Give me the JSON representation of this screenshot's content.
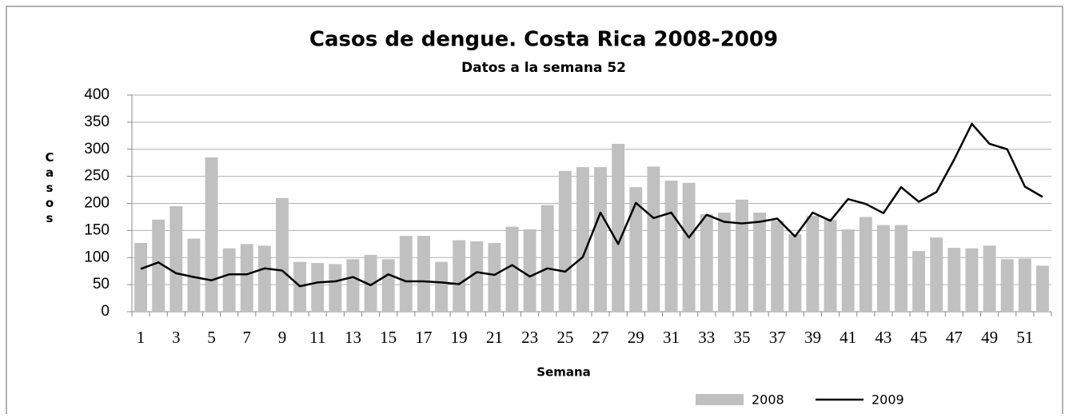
{
  "chart_data": {
    "type": "bar",
    "title": "Casos de dengue. Costa Rica 2008-2009",
    "subtitle": "Datos a la semana 52",
    "x_label": "Semana",
    "y_label": "Casos",
    "categories": [
      "1",
      null,
      "3",
      null,
      "5",
      null,
      "7",
      null,
      "9",
      null,
      "11",
      null,
      "13",
      null,
      "15",
      null,
      "17",
      null,
      "19",
      null,
      "21",
      null,
      "23",
      null,
      "25",
      null,
      "27",
      null,
      "29",
      null,
      "31",
      null,
      "33",
      null,
      "35",
      null,
      "37",
      null,
      "39",
      null,
      "41",
      null,
      "43",
      null,
      "45",
      null,
      "47",
      null,
      "49",
      null,
      "51",
      null
    ],
    "series": [
      {
        "name": "2008",
        "type": "bar",
        "color": "#c0c0c0",
        "values": [
          127,
          170,
          195,
          135,
          285,
          117,
          125,
          122,
          210,
          92,
          90,
          88,
          97,
          105,
          97,
          140,
          140,
          92,
          132,
          130,
          127,
          157,
          152,
          197,
          260,
          267,
          267,
          310,
          230,
          268,
          242,
          238,
          180,
          183,
          207,
          183,
          168,
          143,
          177,
          170,
          152,
          175,
          160,
          160,
          112,
          137,
          118,
          117,
          122,
          97,
          98,
          85
        ]
      },
      {
        "name": "2009",
        "type": "line",
        "color": "#000000",
        "values": [
          79,
          91,
          71,
          64,
          58,
          69,
          69,
          80,
          76,
          47,
          54,
          56,
          64,
          49,
          69,
          56,
          56,
          54,
          51,
          73,
          68,
          86,
          65,
          80,
          74,
          101,
          183,
          125,
          201,
          173,
          183,
          137,
          179,
          166,
          163,
          166,
          172,
          139,
          183,
          168,
          208,
          199,
          182,
          230,
          203,
          221,
          281,
          347,
          310,
          300,
          231,
          212
        ]
      }
    ],
    "ylim": [
      0,
      400
    ],
    "yticks": [
      0,
      50,
      100,
      150,
      200,
      250,
      300,
      350,
      400
    ],
    "grid": true,
    "legend": "bottom"
  }
}
